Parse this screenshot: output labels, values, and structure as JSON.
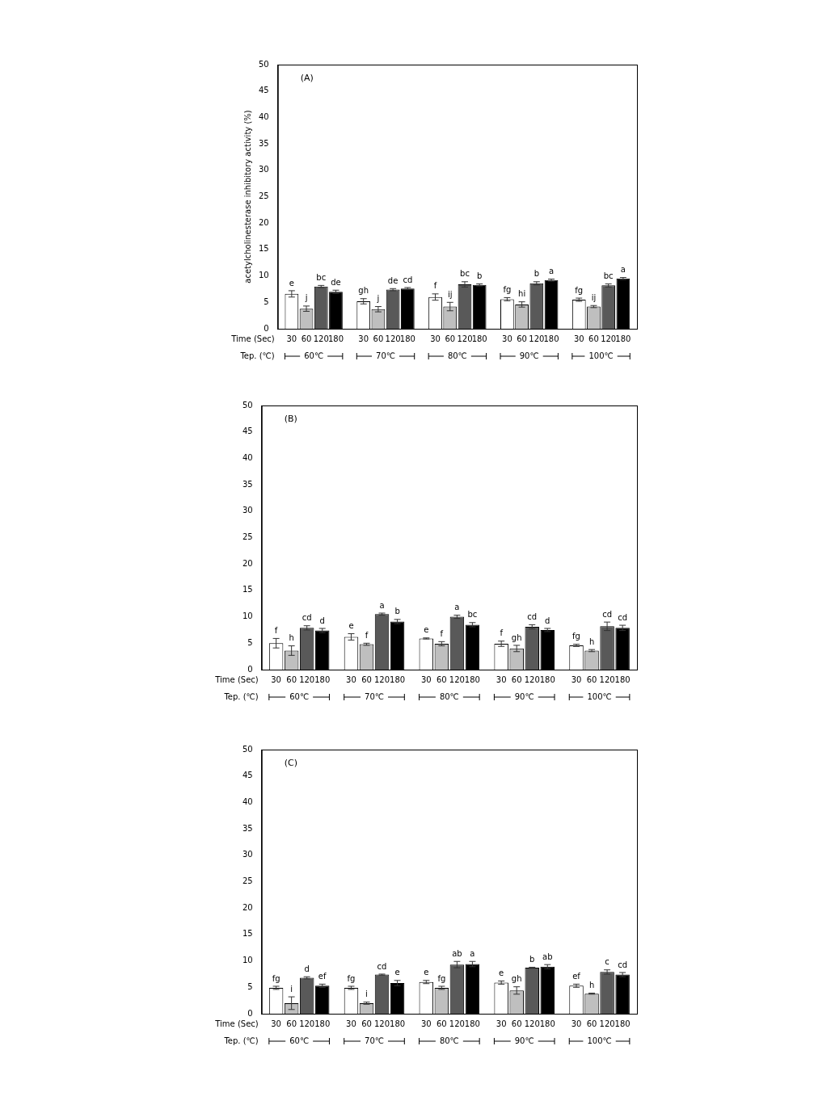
{
  "chart_data": [
    {
      "type": "bar",
      "title": "(A)",
      "y_label": "acetylcholinesterase inhibitory activity (%)",
      "x_label": "Time (Sec)",
      "group_label": "Tep. (℃)",
      "categories": [
        "60℃",
        "70℃",
        "80℃",
        "90℃",
        "100℃"
      ],
      "ylim": [
        0,
        50
      ],
      "yticks": [
        0,
        5,
        10,
        15,
        20,
        25,
        30,
        35,
        40,
        45,
        50
      ],
      "grid": false,
      "series": [
        {
          "name": "30",
          "color": "#ffffff",
          "values": [
            6.6,
            5.2,
            6.0,
            5.6,
            5.5
          ],
          "errors": [
            0.6,
            0.5,
            0.6,
            0.3,
            0.3
          ],
          "letters": [
            "e",
            "gh",
            "f",
            "fg",
            "fg"
          ]
        },
        {
          "name": "60",
          "color": "#bfbfbf",
          "values": [
            3.8,
            3.7,
            4.2,
            4.6,
            4.2
          ],
          "errors": [
            0.5,
            0.5,
            0.8,
            0.5,
            0.2
          ],
          "letters": [
            "j",
            "j",
            "ij",
            "hi",
            "ij"
          ]
        },
        {
          "name": "120",
          "color": "#595959",
          "values": [
            8.0,
            7.4,
            8.4,
            8.6,
            8.2
          ],
          "errors": [
            0.2,
            0.2,
            0.5,
            0.3,
            0.3
          ],
          "letters": [
            "bc",
            "de",
            "bc",
            "b",
            "bc"
          ]
        },
        {
          "name": "180",
          "color": "#000000",
          "values": [
            7.0,
            7.6,
            8.3,
            9.2,
            9.5
          ],
          "errors": [
            0.3,
            0.2,
            0.2,
            0.2,
            0.2
          ],
          "letters": [
            "de",
            "cd",
            "b",
            "a",
            "a"
          ]
        }
      ]
    },
    {
      "type": "bar",
      "title": "(B)",
      "x_label": "Time (Sec)",
      "group_label": "Tep. (℃)",
      "categories": [
        "60℃",
        "70℃",
        "80℃",
        "90℃",
        "100℃"
      ],
      "ylim": [
        0,
        50
      ],
      "yticks": [
        0,
        5,
        10,
        15,
        20,
        25,
        30,
        35,
        40,
        45,
        50
      ],
      "grid": false,
      "series": [
        {
          "name": "30",
          "color": "#ffffff",
          "values": [
            5.0,
            6.2,
            5.9,
            4.9,
            4.6
          ],
          "errors": [
            0.9,
            0.6,
            0.1,
            0.5,
            0.2
          ],
          "letters": [
            "f",
            "e",
            "e",
            "f",
            "fg"
          ]
        },
        {
          "name": "60",
          "color": "#bfbfbf",
          "values": [
            3.6,
            4.8,
            4.9,
            4.0,
            3.6
          ],
          "errors": [
            0.9,
            0.2,
            0.4,
            0.6,
            0.2
          ],
          "letters": [
            "h",
            "f",
            "f",
            "gh",
            "h"
          ]
        },
        {
          "name": "120",
          "color": "#595959",
          "values": [
            7.9,
            10.5,
            10.0,
            8.1,
            8.2
          ],
          "errors": [
            0.4,
            0.2,
            0.3,
            0.4,
            0.8
          ],
          "letters": [
            "cd",
            "a",
            "a",
            "cd",
            "cd"
          ]
        },
        {
          "name": "180",
          "color": "#000000",
          "values": [
            7.4,
            9.1,
            8.5,
            7.5,
            7.9
          ],
          "errors": [
            0.4,
            0.4,
            0.4,
            0.3,
            0.5
          ],
          "letters": [
            "d",
            "b",
            "bc",
            "d",
            "cd"
          ]
        }
      ]
    },
    {
      "type": "bar",
      "title": "(C)",
      "x_label": "Time (Sec)",
      "group_label": "Tep. (℃)",
      "categories": [
        "60℃",
        "70℃",
        "80℃",
        "90℃",
        "100℃"
      ],
      "ylim": [
        0,
        50
      ],
      "yticks": [
        0,
        5,
        10,
        15,
        20,
        25,
        30,
        35,
        40,
        45,
        50
      ],
      "grid": false,
      "series": [
        {
          "name": "30",
          "color": "#ffffff",
          "values": [
            4.9,
            4.9,
            6.0,
            5.9,
            5.3
          ],
          "errors": [
            0.3,
            0.3,
            0.3,
            0.3,
            0.3
          ],
          "letters": [
            "fg",
            "fg",
            "e",
            "e",
            "ef"
          ]
        },
        {
          "name": "60",
          "color": "#bfbfbf",
          "values": [
            2.0,
            2.0,
            4.9,
            4.4,
            3.8
          ],
          "errors": [
            1.2,
            0.2,
            0.3,
            0.7,
            0.1
          ],
          "letters": [
            "i",
            "i",
            "fg",
            "gh",
            "h"
          ]
        },
        {
          "name": "120",
          "color": "#595959",
          "values": [
            6.8,
            7.4,
            9.3,
            8.7,
            7.9
          ],
          "errors": [
            0.2,
            0.1,
            0.6,
            0.1,
            0.4
          ],
          "letters": [
            "d",
            "cd",
            "ab",
            "b",
            "c"
          ]
        },
        {
          "name": "180",
          "color": "#000000",
          "values": [
            5.3,
            5.8,
            9.4,
            8.9,
            7.4
          ],
          "errors": [
            0.3,
            0.5,
            0.5,
            0.4,
            0.4
          ],
          "letters": [
            "ef",
            "e",
            "a",
            "ab",
            "cd"
          ]
        }
      ]
    }
  ]
}
